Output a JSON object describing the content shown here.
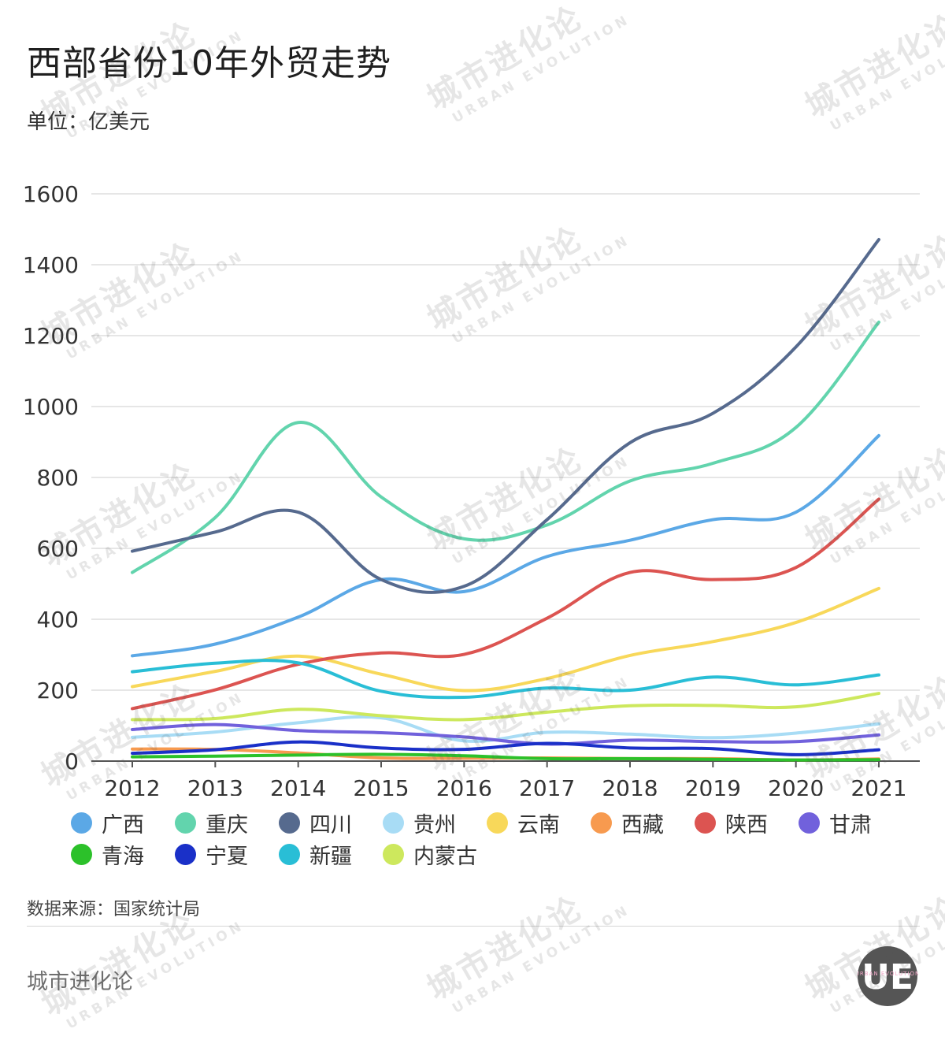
{
  "title": "西部省份10年外贸走势",
  "unit": "单位：亿美元",
  "source": "数据来源：国家统计局",
  "brand": "城市进化论",
  "watermark": {
    "cn": "城市进化论",
    "en": "URBAN EVOLUTION"
  },
  "logo": {
    "initials": "UE",
    "ring_text": "URBAN EVOLUTION",
    "bg": "#555555",
    "fg": "#ffffff"
  },
  "chart_data": {
    "type": "line",
    "title": "西部省份10年外贸走势",
    "xlabel": "",
    "ylabel": "单位：亿美元",
    "ylim": [
      0,
      1600
    ],
    "yticks": [
      0,
      200,
      400,
      600,
      800,
      1000,
      1200,
      1400,
      1600
    ],
    "grid": true,
    "legend_position": "bottom",
    "categories": [
      "2012",
      "2013",
      "2014",
      "2015",
      "2016",
      "2017",
      "2018",
      "2019",
      "2020",
      "2021"
    ],
    "series": [
      {
        "name": "广西",
        "color": "#5ba8e6",
        "values": [
          297,
          330,
          406,
          512,
          478,
          577,
          623,
          681,
          702,
          918
        ]
      },
      {
        "name": "重庆",
        "color": "#62d4ad",
        "values": [
          532,
          687,
          955,
          745,
          627,
          666,
          790,
          840,
          941,
          1238
        ]
      },
      {
        "name": "四川",
        "color": "#566a8e",
        "values": [
          592,
          646,
          702,
          512,
          493,
          681,
          898,
          981,
          1168,
          1471
        ]
      },
      {
        "name": "贵州",
        "color": "#a8dcf5",
        "values": [
          67,
          82,
          108,
          122,
          57,
          81,
          76,
          66,
          79,
          105
        ]
      },
      {
        "name": "云南",
        "color": "#f8d85a",
        "values": [
          210,
          253,
          296,
          245,
          199,
          233,
          298,
          337,
          391,
          487
        ]
      },
      {
        "name": "西藏",
        "color": "#f79a4f",
        "values": [
          34,
          33,
          23,
          9,
          8,
          9,
          7,
          7,
          3,
          6
        ]
      },
      {
        "name": "陕西",
        "color": "#dc5451",
        "values": [
          148,
          201,
          273,
          305,
          301,
          403,
          532,
          512,
          546,
          739
        ]
      },
      {
        "name": "甘肃",
        "color": "#7161dc",
        "values": [
          89,
          103,
          86,
          80,
          68,
          48,
          59,
          55,
          55,
          74
        ]
      },
      {
        "name": "青海",
        "color": "#2cc12a",
        "values": [
          12,
          14,
          17,
          19,
          15,
          7,
          7,
          5,
          3,
          4
        ]
      },
      {
        "name": "宁夏",
        "color": "#1a30c8",
        "values": [
          22,
          32,
          54,
          37,
          33,
          50,
          37,
          35,
          18,
          32
        ]
      },
      {
        "name": "新疆",
        "color": "#29bed6",
        "values": [
          252,
          276,
          277,
          197,
          180,
          206,
          200,
          237,
          215,
          243
        ]
      },
      {
        "name": "内蒙古",
        "color": "#cde85d",
        "values": [
          117,
          120,
          146,
          128,
          117,
          138,
          156,
          157,
          153,
          191
        ]
      }
    ]
  }
}
